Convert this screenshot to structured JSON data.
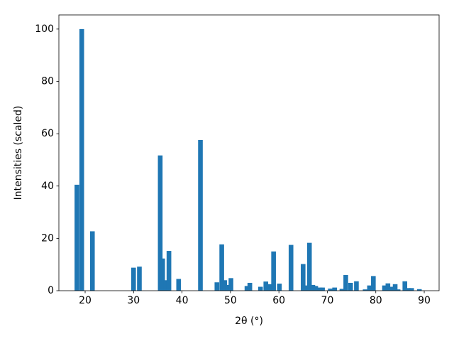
{
  "chart_data": {
    "type": "bar",
    "xlabel": "2θ (°)",
    "ylabel": "Intensities (scaled)",
    "x": [
      18.3,
      19.3,
      21.5,
      30.0,
      31.2,
      35.5,
      36.0,
      36.6,
      37.3,
      39.3,
      43.8,
      47.2,
      48.2,
      48.8,
      49.4,
      50.1,
      53.4,
      54.0,
      56.2,
      57.3,
      58.0,
      58.9,
      60.1,
      62.5,
      65.0,
      65.6,
      66.3,
      67.0,
      67.6,
      68.5,
      69.0,
      70.6,
      71.5,
      73.0,
      73.8,
      74.8,
      76.0,
      77.8,
      78.7,
      79.5,
      81.8,
      82.5,
      83.2,
      84.0,
      84.6,
      86.0,
      86.7,
      87.4,
      89.0
    ],
    "values": [
      40.5,
      100,
      22.7,
      8.8,
      9.2,
      51.7,
      12.3,
      4,
      15.2,
      4.5,
      57.6,
      3.2,
      17.7,
      4,
      2.2,
      4.8,
      1.8,
      3,
      1.5,
      3.5,
      2.5,
      15,
      2.7,
      17.5,
      10.2,
      2,
      18.3,
      2.2,
      1.8,
      1.2,
      1.2,
      0.8,
      1.2,
      0.7,
      6,
      3,
      3.6,
      0.5,
      2,
      5.6,
      2,
      2.8,
      1.5,
      2.5,
      0.5,
      3.6,
      1,
      1,
      0.6
    ],
    "color": "#1f77b4",
    "xlim": [
      14.58,
      93.07
    ],
    "xticks": [
      20,
      30,
      40,
      50,
      60,
      70,
      80,
      90
    ],
    "ylim": [
      0,
      105.4
    ],
    "yticks": [
      0,
      20,
      40,
      60,
      80,
      100
    ]
  }
}
